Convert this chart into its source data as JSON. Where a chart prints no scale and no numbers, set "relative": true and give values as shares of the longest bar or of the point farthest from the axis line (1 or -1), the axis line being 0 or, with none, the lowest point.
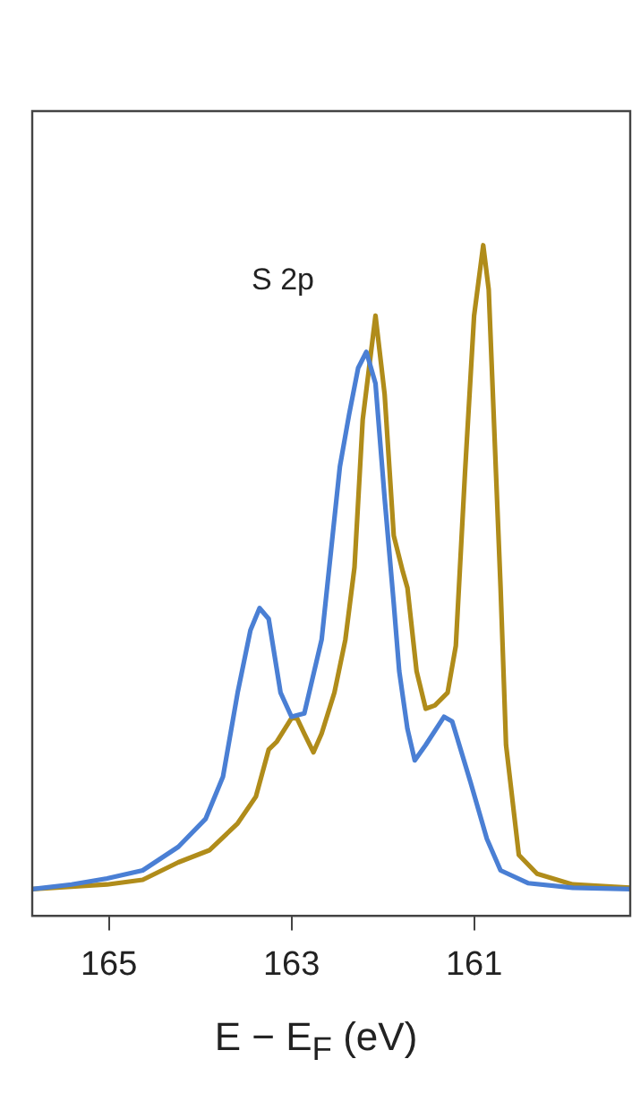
{
  "chart_data": {
    "type": "line",
    "relative": true,
    "xlabel": "E − E$_{F}$ (eV)",
    "xlim": [
      165.84,
      159.29
    ],
    "xticks": [
      165,
      163,
      161
    ],
    "grid": false,
    "legend": false,
    "marker": "none",
    "line_style": "solid",
    "annotations": [
      "S 2p"
    ],
    "series": [
      {
        "color": "#4a7fd4",
        "x": [
          165.84,
          165.41,
          165.02,
          164.63,
          164.24,
          163.94,
          163.75,
          163.59,
          163.45,
          163.35,
          163.25,
          163.12,
          163.0,
          162.86,
          162.67,
          162.47,
          162.37,
          162.27,
          162.18,
          162.08,
          161.98,
          161.88,
          161.82,
          161.73,
          161.65,
          161.53,
          161.33,
          161.24,
          161.04,
          160.86,
          160.71,
          160.41,
          159.92,
          159.29
        ],
        "values": [
          0.04,
          0.047,
          0.056,
          0.068,
          0.103,
          0.145,
          0.208,
          0.333,
          0.426,
          0.459,
          0.443,
          0.333,
          0.297,
          0.302,
          0.412,
          0.67,
          0.747,
          0.817,
          0.841,
          0.794,
          0.623,
          0.466,
          0.365,
          0.279,
          0.232,
          0.255,
          0.297,
          0.29,
          0.2,
          0.115,
          0.068,
          0.049,
          0.042,
          0.04
        ]
      },
      {
        "color": "#b08c1a",
        "x": [
          165.84,
          165.02,
          164.63,
          164.24,
          163.9,
          163.59,
          163.39,
          163.25,
          163.16,
          163.0,
          162.94,
          162.86,
          162.76,
          162.67,
          162.53,
          162.41,
          162.31,
          162.22,
          162.08,
          161.98,
          161.88,
          161.78,
          161.73,
          161.63,
          161.53,
          161.43,
          161.29,
          161.2,
          161.1,
          161.0,
          160.9,
          160.84,
          160.76,
          160.71,
          160.65,
          160.51,
          160.31,
          159.92,
          159.29
        ],
        "values": [
          0.04,
          0.047,
          0.054,
          0.08,
          0.098,
          0.138,
          0.178,
          0.248,
          0.26,
          0.295,
          0.295,
          0.272,
          0.244,
          0.272,
          0.333,
          0.412,
          0.52,
          0.74,
          0.895,
          0.778,
          0.567,
          0.513,
          0.489,
          0.365,
          0.309,
          0.314,
          0.333,
          0.403,
          0.66,
          0.895,
          1,
          0.934,
          0.66,
          0.49,
          0.255,
          0.091,
          0.063,
          0.047,
          0.042
        ]
      }
    ]
  }
}
